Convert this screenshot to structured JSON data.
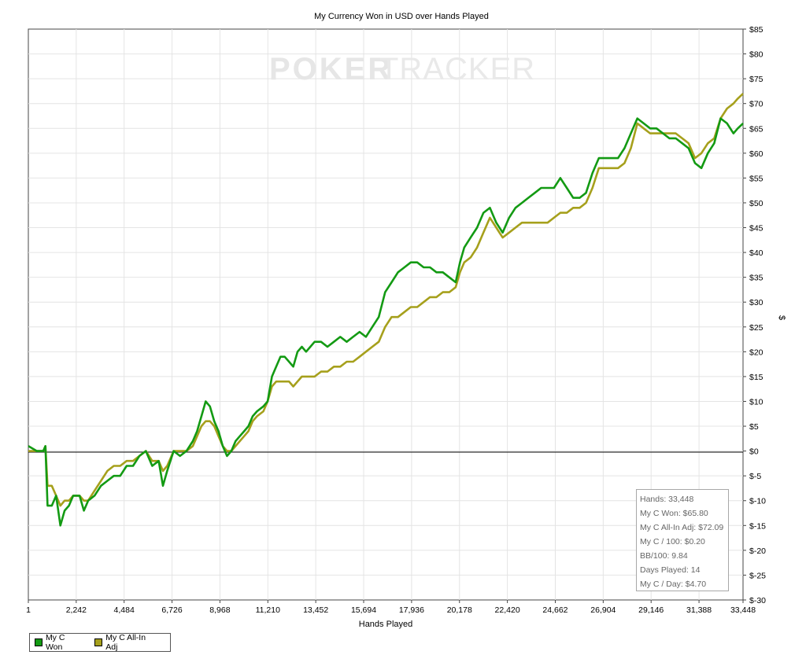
{
  "chart_data": {
    "type": "line",
    "title": "My Currency Won in USD over Hands Played",
    "xlabel": "Hands Played",
    "ylabel": "$",
    "xlim": [
      1,
      33448
    ],
    "ylim": [
      -30,
      85
    ],
    "x_ticks": [
      "1",
      "2,242",
      "4,484",
      "6,726",
      "8,968",
      "11,210",
      "13,452",
      "15,694",
      "17,936",
      "20,178",
      "22,420",
      "24,662",
      "26,904",
      "29,146",
      "31,388",
      "33,448"
    ],
    "y_ticks": [
      "$85",
      "$80",
      "$75",
      "$70",
      "$65",
      "$60",
      "$55",
      "$50",
      "$45",
      "$40",
      "$35",
      "$30",
      "$25",
      "$20",
      "$15",
      "$10",
      "$5",
      "$0",
      "$-5",
      "$-10",
      "$-15",
      "$-20",
      "$-25",
      "$-30"
    ],
    "watermark_left": "POKER",
    "watermark_right": "TRACKER",
    "legend_position": "bottom-left",
    "grid": true,
    "series": [
      {
        "name": "My C Won",
        "color": "#139a13",
        "points": [
          [
            1,
            1
          ],
          [
            400,
            0
          ],
          [
            700,
            0
          ],
          [
            800,
            1
          ],
          [
            900,
            -11
          ],
          [
            1100,
            -11
          ],
          [
            1300,
            -9
          ],
          [
            1500,
            -15
          ],
          [
            1700,
            -12
          ],
          [
            1900,
            -11
          ],
          [
            2100,
            -9
          ],
          [
            2400,
            -9
          ],
          [
            2600,
            -12
          ],
          [
            2800,
            -10
          ],
          [
            3100,
            -9
          ],
          [
            3400,
            -7
          ],
          [
            3700,
            -6
          ],
          [
            4000,
            -5
          ],
          [
            4300,
            -5
          ],
          [
            4600,
            -3
          ],
          [
            4900,
            -3
          ],
          [
            5200,
            -1
          ],
          [
            5500,
            0
          ],
          [
            5800,
            -3
          ],
          [
            6100,
            -2
          ],
          [
            6300,
            -7
          ],
          [
            6500,
            -4
          ],
          [
            6800,
            0
          ],
          [
            7100,
            -1
          ],
          [
            7400,
            0
          ],
          [
            7700,
            2
          ],
          [
            7900,
            4
          ],
          [
            8100,
            7
          ],
          [
            8300,
            10
          ],
          [
            8500,
            9
          ],
          [
            8700,
            6
          ],
          [
            8900,
            4
          ],
          [
            9100,
            1
          ],
          [
            9300,
            -1
          ],
          [
            9500,
            0
          ],
          [
            9700,
            2
          ],
          [
            9900,
            3
          ],
          [
            10100,
            4
          ],
          [
            10300,
            5
          ],
          [
            10500,
            7
          ],
          [
            10700,
            8
          ],
          [
            11000,
            9
          ],
          [
            11200,
            10
          ],
          [
            11400,
            15
          ],
          [
            11600,
            17
          ],
          [
            11800,
            19
          ],
          [
            12000,
            19
          ],
          [
            12200,
            18
          ],
          [
            12400,
            17
          ],
          [
            12600,
            20
          ],
          [
            12800,
            21
          ],
          [
            13000,
            20
          ],
          [
            13200,
            21
          ],
          [
            13400,
            22
          ],
          [
            13700,
            22
          ],
          [
            14000,
            21
          ],
          [
            14300,
            22
          ],
          [
            14600,
            23
          ],
          [
            14900,
            22
          ],
          [
            15200,
            23
          ],
          [
            15500,
            24
          ],
          [
            15800,
            23
          ],
          [
            16100,
            25
          ],
          [
            16400,
            27
          ],
          [
            16700,
            32
          ],
          [
            17000,
            34
          ],
          [
            17300,
            36
          ],
          [
            17600,
            37
          ],
          [
            17900,
            38
          ],
          [
            18200,
            38
          ],
          [
            18500,
            37
          ],
          [
            18800,
            37
          ],
          [
            19100,
            36
          ],
          [
            19400,
            36
          ],
          [
            19700,
            35
          ],
          [
            20000,
            34
          ],
          [
            20200,
            38
          ],
          [
            20400,
            41
          ],
          [
            20700,
            43
          ],
          [
            21000,
            45
          ],
          [
            21300,
            48
          ],
          [
            21600,
            49
          ],
          [
            21900,
            46
          ],
          [
            22200,
            44
          ],
          [
            22500,
            47
          ],
          [
            22800,
            49
          ],
          [
            23100,
            50
          ],
          [
            23400,
            51
          ],
          [
            23700,
            52
          ],
          [
            24000,
            53
          ],
          [
            24300,
            53
          ],
          [
            24600,
            53
          ],
          [
            24900,
            55
          ],
          [
            25200,
            53
          ],
          [
            25500,
            51
          ],
          [
            25800,
            51
          ],
          [
            26100,
            52
          ],
          [
            26400,
            56
          ],
          [
            26700,
            59
          ],
          [
            27000,
            59
          ],
          [
            27300,
            59
          ],
          [
            27600,
            59
          ],
          [
            27900,
            61
          ],
          [
            28200,
            64
          ],
          [
            28500,
            67
          ],
          [
            28800,
            66
          ],
          [
            29100,
            65
          ],
          [
            29400,
            65
          ],
          [
            29700,
            64
          ],
          [
            30000,
            63
          ],
          [
            30300,
            63
          ],
          [
            30600,
            62
          ],
          [
            30900,
            61
          ],
          [
            31200,
            58
          ],
          [
            31500,
            57
          ],
          [
            31800,
            60
          ],
          [
            32100,
            62
          ],
          [
            32400,
            67
          ],
          [
            32700,
            66
          ],
          [
            33000,
            64
          ],
          [
            33200,
            65
          ],
          [
            33448,
            66
          ]
        ]
      },
      {
        "name": "My C All-In Adj",
        "color": "#a6a01c",
        "points": [
          [
            1,
            0
          ],
          [
            400,
            0
          ],
          [
            700,
            0
          ],
          [
            800,
            1
          ],
          [
            900,
            -7
          ],
          [
            1100,
            -7
          ],
          [
            1300,
            -9
          ],
          [
            1500,
            -11
          ],
          [
            1700,
            -10
          ],
          [
            1900,
            -10
          ],
          [
            2100,
            -9
          ],
          [
            2400,
            -9
          ],
          [
            2600,
            -10
          ],
          [
            2800,
            -10
          ],
          [
            3100,
            -8
          ],
          [
            3400,
            -6
          ],
          [
            3700,
            -4
          ],
          [
            4000,
            -3
          ],
          [
            4300,
            -3
          ],
          [
            4600,
            -2
          ],
          [
            4900,
            -2
          ],
          [
            5200,
            -1
          ],
          [
            5500,
            0
          ],
          [
            5800,
            -2
          ],
          [
            6100,
            -2
          ],
          [
            6300,
            -4
          ],
          [
            6500,
            -3
          ],
          [
            6800,
            0
          ],
          [
            7100,
            0
          ],
          [
            7400,
            0
          ],
          [
            7700,
            1
          ],
          [
            7900,
            3
          ],
          [
            8100,
            5
          ],
          [
            8300,
            6
          ],
          [
            8500,
            6
          ],
          [
            8700,
            5
          ],
          [
            8900,
            3
          ],
          [
            9100,
            1
          ],
          [
            9300,
            0
          ],
          [
            9500,
            0
          ],
          [
            9700,
            1
          ],
          [
            9900,
            2
          ],
          [
            10100,
            3
          ],
          [
            10300,
            4
          ],
          [
            10500,
            6
          ],
          [
            10700,
            7
          ],
          [
            11000,
            8
          ],
          [
            11200,
            10
          ],
          [
            11400,
            13
          ],
          [
            11600,
            14
          ],
          [
            11800,
            14
          ],
          [
            12000,
            14
          ],
          [
            12200,
            14
          ],
          [
            12400,
            13
          ],
          [
            12600,
            14
          ],
          [
            12800,
            15
          ],
          [
            13000,
            15
          ],
          [
            13200,
            15
          ],
          [
            13400,
            15
          ],
          [
            13700,
            16
          ],
          [
            14000,
            16
          ],
          [
            14300,
            17
          ],
          [
            14600,
            17
          ],
          [
            14900,
            18
          ],
          [
            15200,
            18
          ],
          [
            15500,
            19
          ],
          [
            15800,
            20
          ],
          [
            16100,
            21
          ],
          [
            16400,
            22
          ],
          [
            16700,
            25
          ],
          [
            17000,
            27
          ],
          [
            17300,
            27
          ],
          [
            17600,
            28
          ],
          [
            17900,
            29
          ],
          [
            18200,
            29
          ],
          [
            18500,
            30
          ],
          [
            18800,
            31
          ],
          [
            19100,
            31
          ],
          [
            19400,
            32
          ],
          [
            19700,
            32
          ],
          [
            20000,
            33
          ],
          [
            20200,
            36
          ],
          [
            20400,
            38
          ],
          [
            20700,
            39
          ],
          [
            21000,
            41
          ],
          [
            21300,
            44
          ],
          [
            21600,
            47
          ],
          [
            21900,
            45
          ],
          [
            22200,
            43
          ],
          [
            22500,
            44
          ],
          [
            22800,
            45
          ],
          [
            23100,
            46
          ],
          [
            23400,
            46
          ],
          [
            23700,
            46
          ],
          [
            24000,
            46
          ],
          [
            24300,
            46
          ],
          [
            24600,
            47
          ],
          [
            24900,
            48
          ],
          [
            25200,
            48
          ],
          [
            25500,
            49
          ],
          [
            25800,
            49
          ],
          [
            26100,
            50
          ],
          [
            26400,
            53
          ],
          [
            26700,
            57
          ],
          [
            27000,
            57
          ],
          [
            27300,
            57
          ],
          [
            27600,
            57
          ],
          [
            27900,
            58
          ],
          [
            28200,
            61
          ],
          [
            28500,
            66
          ],
          [
            28800,
            65
          ],
          [
            29100,
            64
          ],
          [
            29400,
            64
          ],
          [
            29700,
            64
          ],
          [
            30000,
            64
          ],
          [
            30300,
            64
          ],
          [
            30600,
            63
          ],
          [
            30900,
            62
          ],
          [
            31200,
            59
          ],
          [
            31500,
            60
          ],
          [
            31800,
            62
          ],
          [
            32100,
            63
          ],
          [
            32400,
            67
          ],
          [
            32700,
            69
          ],
          [
            33000,
            70
          ],
          [
            33200,
            71
          ],
          [
            33448,
            72
          ]
        ]
      }
    ]
  },
  "stats": {
    "hands": "Hands: 33,448",
    "c_won": "My C Won: $65.80",
    "allin_adj": "My C All-In Adj: $72.09",
    "c_per_100": "My C / 100: $0.20",
    "bb_per_100": "BB/100: 9.84",
    "days_played": "Days Played: 14",
    "c_per_day": "My C / Day: $4.70"
  }
}
